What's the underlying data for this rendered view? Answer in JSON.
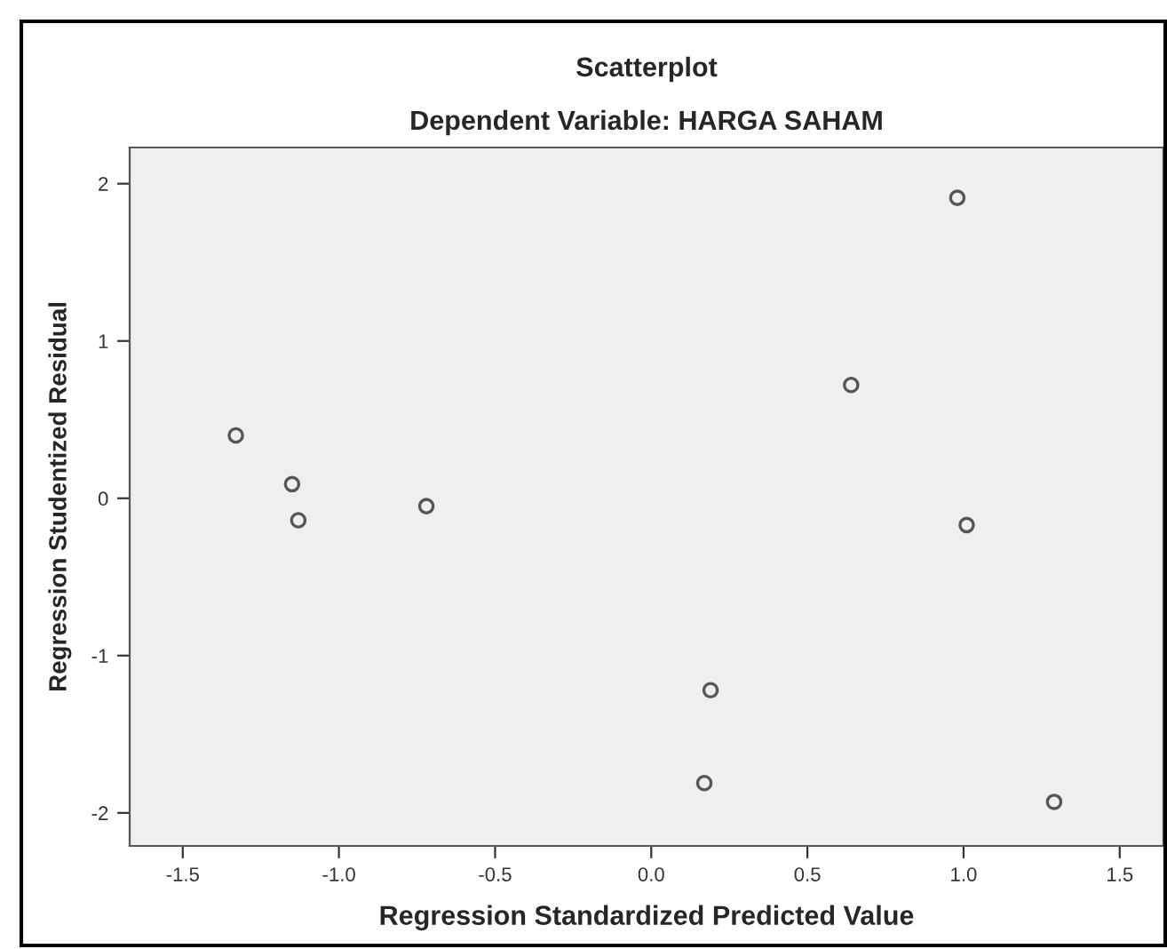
{
  "chart_data": {
    "type": "scatter",
    "title": "Scatterplot",
    "subtitle": "Dependent Variable: HARGA SAHAM",
    "xlabel": "Regression Standardized Predicted Value",
    "ylabel": "Regression Studentized Residual",
    "x": [
      -1.33,
      -1.15,
      -1.13,
      -0.72,
      0.19,
      0.17,
      1.29,
      0.98,
      0.64,
      1.01
    ],
    "series": [
      {
        "color": "#555555",
        "values": [
          0.4,
          0.09,
          -0.14,
          -0.05,
          -1.22,
          -1.81,
          -1.93,
          1.91,
          0.72,
          -0.17
        ]
      }
    ],
    "marker": "circle",
    "grid": false,
    "legend": false,
    "xlim": [
      -1.67,
      1.64
    ],
    "ylim": [
      -2.21,
      2.23
    ],
    "xticks": [
      -1.5,
      {
        "value": -1.0,
        "label": "-1.0"
      },
      -0.5,
      {
        "value": 0.0,
        "label": "0.0"
      },
      0.5,
      {
        "value": 1.0,
        "label": "1.0"
      },
      1.5
    ],
    "yticks": [
      {
        "value": -2,
        "label": "-2"
      },
      {
        "value": -1,
        "label": "-1"
      },
      0,
      1,
      2
    ]
  }
}
